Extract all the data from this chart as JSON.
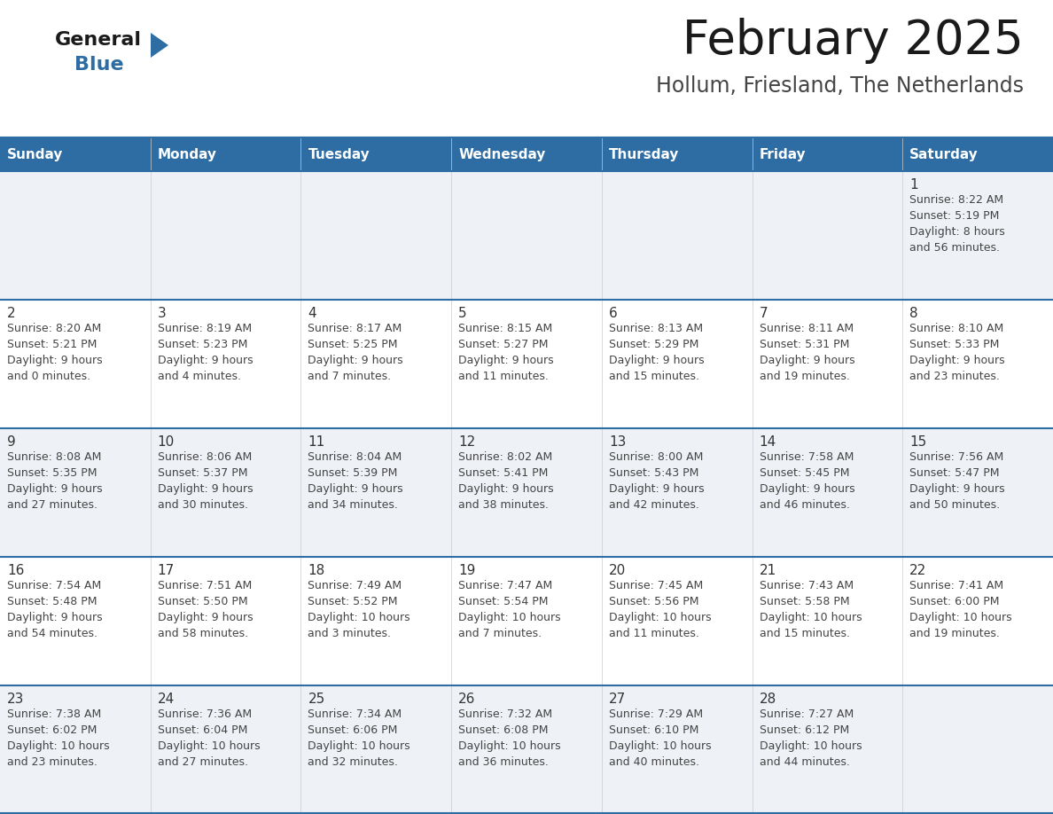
{
  "title": "February 2025",
  "subtitle": "Hollum, Friesland, The Netherlands",
  "days_of_week": [
    "Sunday",
    "Monday",
    "Tuesday",
    "Wednesday",
    "Thursday",
    "Friday",
    "Saturday"
  ],
  "header_bg": "#2e6da4",
  "header_text": "#ffffff",
  "cell_bg_odd": "#eef2f7",
  "cell_bg_even": "#ffffff",
  "grid_line_color": "#2e6da4",
  "day_number_color": "#333333",
  "cell_text_color": "#444444",
  "title_color": "#1a1a1a",
  "subtitle_color": "#444444",
  "logo_general_color": "#1a1a1a",
  "logo_blue_color": "#2e6da4",
  "weeks": [
    [
      {
        "day": null,
        "info": null
      },
      {
        "day": null,
        "info": null
      },
      {
        "day": null,
        "info": null
      },
      {
        "day": null,
        "info": null
      },
      {
        "day": null,
        "info": null
      },
      {
        "day": null,
        "info": null
      },
      {
        "day": 1,
        "info": "Sunrise: 8:22 AM\nSunset: 5:19 PM\nDaylight: 8 hours\nand 56 minutes."
      }
    ],
    [
      {
        "day": 2,
        "info": "Sunrise: 8:20 AM\nSunset: 5:21 PM\nDaylight: 9 hours\nand 0 minutes."
      },
      {
        "day": 3,
        "info": "Sunrise: 8:19 AM\nSunset: 5:23 PM\nDaylight: 9 hours\nand 4 minutes."
      },
      {
        "day": 4,
        "info": "Sunrise: 8:17 AM\nSunset: 5:25 PM\nDaylight: 9 hours\nand 7 minutes."
      },
      {
        "day": 5,
        "info": "Sunrise: 8:15 AM\nSunset: 5:27 PM\nDaylight: 9 hours\nand 11 minutes."
      },
      {
        "day": 6,
        "info": "Sunrise: 8:13 AM\nSunset: 5:29 PM\nDaylight: 9 hours\nand 15 minutes."
      },
      {
        "day": 7,
        "info": "Sunrise: 8:11 AM\nSunset: 5:31 PM\nDaylight: 9 hours\nand 19 minutes."
      },
      {
        "day": 8,
        "info": "Sunrise: 8:10 AM\nSunset: 5:33 PM\nDaylight: 9 hours\nand 23 minutes."
      }
    ],
    [
      {
        "day": 9,
        "info": "Sunrise: 8:08 AM\nSunset: 5:35 PM\nDaylight: 9 hours\nand 27 minutes."
      },
      {
        "day": 10,
        "info": "Sunrise: 8:06 AM\nSunset: 5:37 PM\nDaylight: 9 hours\nand 30 minutes."
      },
      {
        "day": 11,
        "info": "Sunrise: 8:04 AM\nSunset: 5:39 PM\nDaylight: 9 hours\nand 34 minutes."
      },
      {
        "day": 12,
        "info": "Sunrise: 8:02 AM\nSunset: 5:41 PM\nDaylight: 9 hours\nand 38 minutes."
      },
      {
        "day": 13,
        "info": "Sunrise: 8:00 AM\nSunset: 5:43 PM\nDaylight: 9 hours\nand 42 minutes."
      },
      {
        "day": 14,
        "info": "Sunrise: 7:58 AM\nSunset: 5:45 PM\nDaylight: 9 hours\nand 46 minutes."
      },
      {
        "day": 15,
        "info": "Sunrise: 7:56 AM\nSunset: 5:47 PM\nDaylight: 9 hours\nand 50 minutes."
      }
    ],
    [
      {
        "day": 16,
        "info": "Sunrise: 7:54 AM\nSunset: 5:48 PM\nDaylight: 9 hours\nand 54 minutes."
      },
      {
        "day": 17,
        "info": "Sunrise: 7:51 AM\nSunset: 5:50 PM\nDaylight: 9 hours\nand 58 minutes."
      },
      {
        "day": 18,
        "info": "Sunrise: 7:49 AM\nSunset: 5:52 PM\nDaylight: 10 hours\nand 3 minutes."
      },
      {
        "day": 19,
        "info": "Sunrise: 7:47 AM\nSunset: 5:54 PM\nDaylight: 10 hours\nand 7 minutes."
      },
      {
        "day": 20,
        "info": "Sunrise: 7:45 AM\nSunset: 5:56 PM\nDaylight: 10 hours\nand 11 minutes."
      },
      {
        "day": 21,
        "info": "Sunrise: 7:43 AM\nSunset: 5:58 PM\nDaylight: 10 hours\nand 15 minutes."
      },
      {
        "day": 22,
        "info": "Sunrise: 7:41 AM\nSunset: 6:00 PM\nDaylight: 10 hours\nand 19 minutes."
      }
    ],
    [
      {
        "day": 23,
        "info": "Sunrise: 7:38 AM\nSunset: 6:02 PM\nDaylight: 10 hours\nand 23 minutes."
      },
      {
        "day": 24,
        "info": "Sunrise: 7:36 AM\nSunset: 6:04 PM\nDaylight: 10 hours\nand 27 minutes."
      },
      {
        "day": 25,
        "info": "Sunrise: 7:34 AM\nSunset: 6:06 PM\nDaylight: 10 hours\nand 32 minutes."
      },
      {
        "day": 26,
        "info": "Sunrise: 7:32 AM\nSunset: 6:08 PM\nDaylight: 10 hours\nand 36 minutes."
      },
      {
        "day": 27,
        "info": "Sunrise: 7:29 AM\nSunset: 6:10 PM\nDaylight: 10 hours\nand 40 minutes."
      },
      {
        "day": 28,
        "info": "Sunrise: 7:27 AM\nSunset: 6:12 PM\nDaylight: 10 hours\nand 44 minutes."
      },
      {
        "day": null,
        "info": null
      }
    ]
  ]
}
